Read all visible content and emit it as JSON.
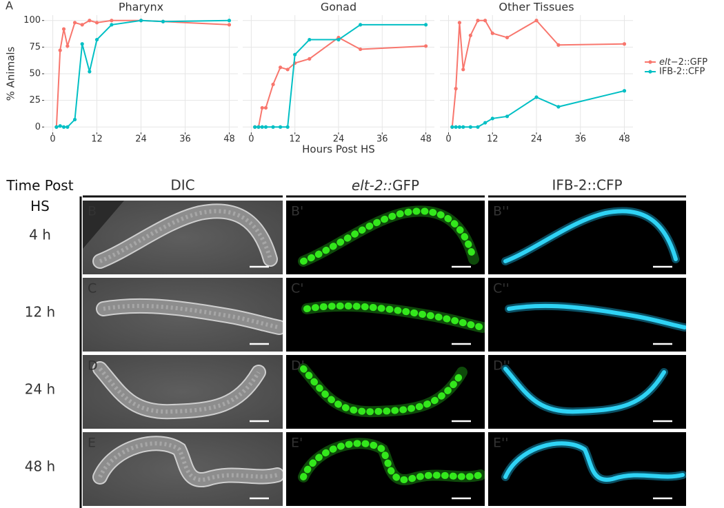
{
  "panel_label": "A",
  "chart_data": [
    {
      "type": "line",
      "title": "Pharynx",
      "y_label": "% Animals",
      "x": [
        1,
        2,
        3,
        4,
        6,
        8,
        10,
        12,
        16,
        24,
        30,
        48
      ],
      "series": [
        {
          "name": "elt−2::GFP",
          "color": "#F8766D",
          "values": [
            0,
            72,
            92,
            76,
            98,
            96,
            100,
            98,
            100,
            100,
            99,
            96
          ]
        },
        {
          "name": "IFB-2::CFP",
          "color": "#00BFC4",
          "values": [
            0,
            1,
            0,
            0,
            7,
            78,
            52,
            82,
            96,
            100,
            99,
            100
          ]
        }
      ],
      "xlim": [
        -2.35,
        50.35
      ],
      "xticks": [
        0,
        12,
        24,
        36,
        48
      ],
      "ylim": [
        -5,
        105
      ],
      "yticks": [
        0,
        25,
        50,
        75,
        100
      ],
      "grid": true
    },
    {
      "type": "line",
      "title": "Gonad",
      "x_label": "Hours Post HS",
      "x": [
        1,
        2,
        3,
        4,
        6,
        8,
        10,
        12,
        16,
        24,
        30,
        48
      ],
      "series": [
        {
          "name": "elt−2::GFP",
          "color": "#F8766D",
          "values": [
            0,
            0,
            18,
            18,
            40,
            56,
            54,
            60,
            64,
            84,
            73,
            76
          ]
        },
        {
          "name": "IFB-2::CFP",
          "color": "#00BFC4",
          "values": [
            0,
            0,
            0,
            0,
            0,
            0,
            0,
            68,
            82,
            82,
            96,
            96
          ]
        }
      ],
      "xlim": [
        -2.35,
        50.35
      ],
      "xticks": [
        0,
        12,
        24,
        36,
        48
      ],
      "ylim": [
        -5,
        105
      ],
      "grid": true
    },
    {
      "type": "line",
      "title": "Other Tissues",
      "legend": "right",
      "x": [
        1,
        2,
        3,
        4,
        6,
        8,
        10,
        12,
        16,
        24,
        30,
        48
      ],
      "series": [
        {
          "name": "elt−2::GFP",
          "color": "#F8766D",
          "values": [
            0,
            36,
            98,
            54,
            86,
            100,
            100,
            88,
            84,
            100,
            77,
            78
          ]
        },
        {
          "name": "IFB-2::CFP",
          "color": "#00BFC4",
          "values": [
            0,
            0,
            0,
            0,
            0,
            0,
            4,
            8,
            10,
            28,
            19,
            34
          ]
        }
      ],
      "xlim": [
        -2.35,
        50.35
      ],
      "xticks": [
        0,
        12,
        24,
        36,
        48
      ],
      "ylim": [
        -5,
        105
      ],
      "grid": true
    }
  ],
  "images": {
    "time_header": "Time Post HS",
    "columns": [
      "DIC",
      "elt-2::GFP",
      "IFB-2::CFP"
    ],
    "rows": [
      {
        "time": "4 h",
        "panels": [
          "B",
          "B'",
          "B''"
        ]
      },
      {
        "time": "12 h",
        "panels": [
          "C",
          "C'",
          "C''"
        ]
      },
      {
        "time": "24 h",
        "panels": [
          "D",
          "D'",
          "D''"
        ]
      },
      {
        "time": "48 h",
        "panels": [
          "E",
          "E'",
          "E''"
        ]
      }
    ]
  }
}
